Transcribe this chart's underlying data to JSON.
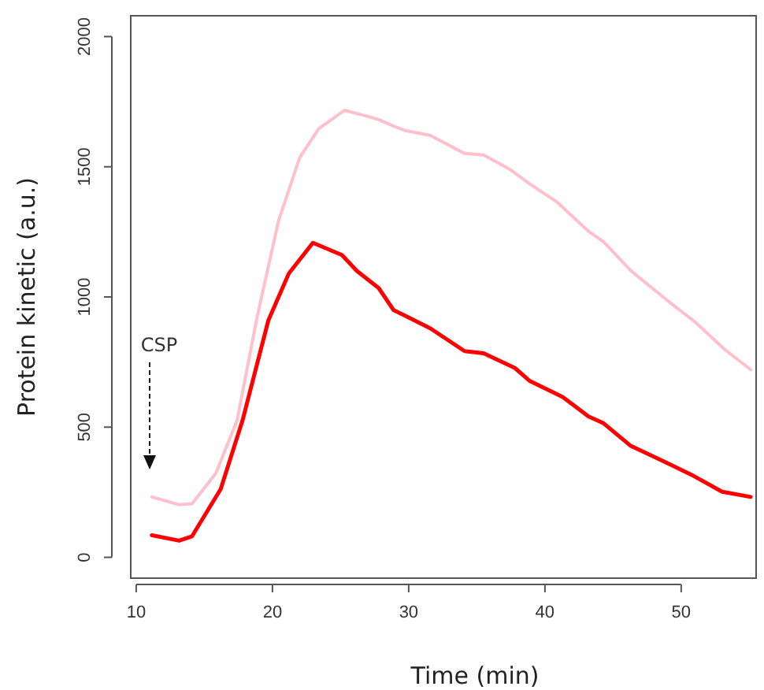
{
  "chart_data": {
    "type": "line",
    "xlabel": "Time (min)",
    "ylabel": "Protein kinetic (a.u.)",
    "xlim": [
      9.6,
      55.5
    ],
    "ylim": [
      -80,
      2080
    ],
    "xticks": [
      10,
      20,
      30,
      40,
      50
    ],
    "yticks": [
      0,
      500,
      1000,
      1500,
      2000
    ],
    "grid": false,
    "marker": "none",
    "line_style": "solid",
    "annotations": [
      "CSP"
    ],
    "series": [
      {
        "color": "#ffc0cb",
        "x": [
          11.15,
          13.15,
          14.1,
          15.85,
          17.4,
          18.9,
          20.45,
          22,
          23.4,
          25.3,
          27,
          27.8,
          28.9,
          29.7,
          31.6,
          34.1,
          35.5,
          37.4,
          38.9,
          40.9,
          43.2,
          44.3,
          46.3,
          48.9,
          50.9,
          53.2,
          55.1
        ],
        "values": [
          232,
          202,
          206,
          323,
          525,
          929,
          1293,
          1535,
          1646,
          1717,
          1693,
          1681,
          1656,
          1640,
          1620,
          1551,
          1545,
          1491,
          1434,
          1364,
          1252,
          1212,
          1101,
          990,
          909,
          798,
          721
        ]
      },
      {
        "color": "#ff0000",
        "x": [
          11.15,
          13.15,
          14.1,
          16.2,
          17.8,
          19.7,
          21.2,
          22.97,
          25.1,
          26.2,
          27.8,
          28.9,
          29.7,
          31.6,
          34.1,
          35.5,
          37.8,
          38.9,
          41.3,
          43.2,
          44.3,
          46.3,
          48.9,
          50.9,
          53,
          55.1
        ],
        "values": [
          85,
          64,
          81,
          262,
          525,
          910,
          1090,
          1208,
          1161,
          1100,
          1034,
          949,
          929,
          879,
          792,
          784,
          727,
          677,
          616,
          541,
          515,
          428,
          364,
          313,
          252,
          232
        ]
      }
    ]
  }
}
